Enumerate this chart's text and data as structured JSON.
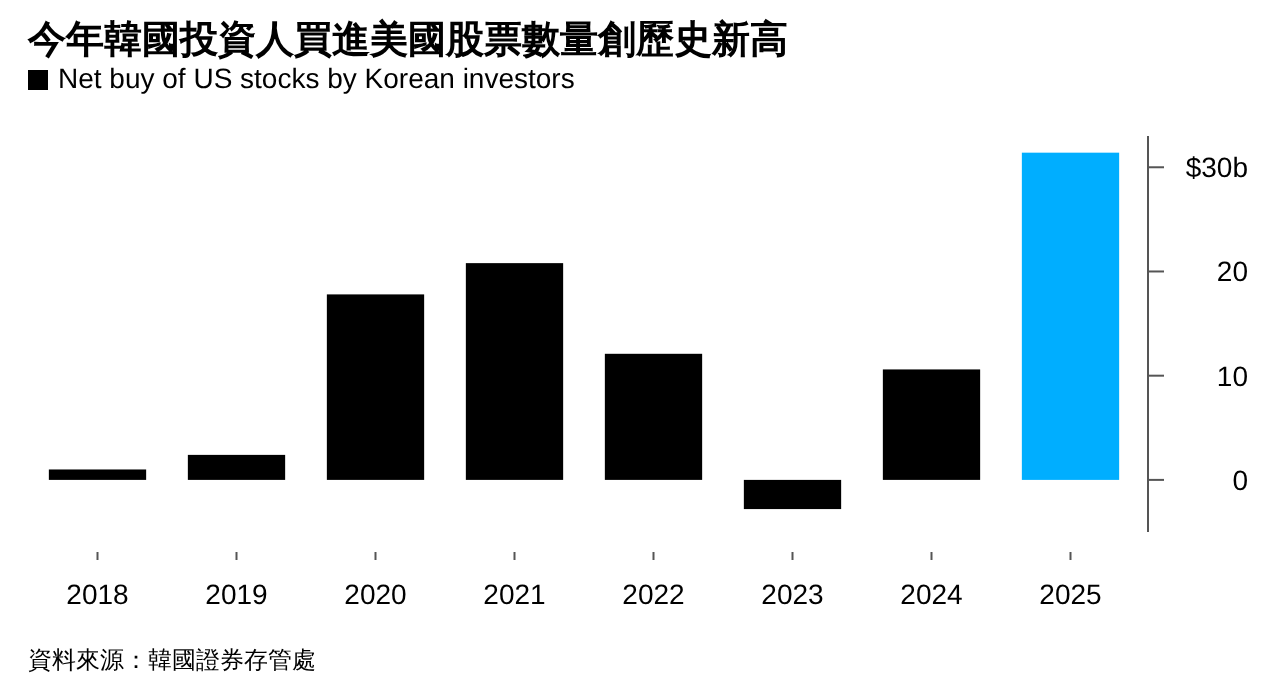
{
  "chart_data": {
    "type": "bar",
    "title": "今年韓國投資人買進美國股票數量創歷史新高",
    "categories": [
      "2018",
      "2019",
      "2020",
      "2021",
      "2022",
      "2023",
      "2024",
      "2025"
    ],
    "series": [
      {
        "name": "Net buy of US stocks by Korean investors",
        "color": "#000000",
        "colors": [
          "#000000",
          "#000000",
          "#000000",
          "#000000",
          "#000000",
          "#000000",
          "#000000",
          "#00aeff"
        ],
        "values": [
          1.0,
          2.4,
          17.8,
          20.8,
          12.1,
          -2.8,
          10.6,
          31.4
        ]
      }
    ],
    "ylim": [
      -5,
      33
    ],
    "yticks": [
      0,
      10,
      20,
      {
        "value": 30,
        "label": "$30b"
      }
    ],
    "legend": "top left",
    "grid": false,
    "annotations": [
      "資料來源：韓國證券存管處"
    ]
  }
}
